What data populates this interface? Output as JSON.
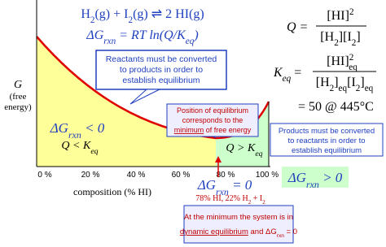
{
  "equation": [
    "H",
    "2",
    "(g) + I",
    "2",
    "(g) ⇌ 2 HI(g)"
  ],
  "delta_g_relation": [
    "ΔG",
    "rxn",
    " = RT ln(Q/K",
    "eq",
    ")"
  ],
  "q_expression": {
    "lhs": "Q =",
    "numerator": [
      "[HI]",
      "2"
    ],
    "denominator": [
      "[H",
      "2",
      "][I",
      "2",
      "]"
    ]
  },
  "keq_expression": {
    "lhs": [
      "K",
      "eq",
      " ="
    ],
    "numerator": [
      "[HI]",
      "2",
      "eq"
    ],
    "denominator": [
      "[H",
      "2",
      "]",
      "eq",
      "[I",
      "2",
      "]",
      "eq"
    ]
  },
  "keq_value": "= 50 @ 445°C",
  "y_axis_label": [
    "G",
    "(free",
    "energy)"
  ],
  "x_axis_label": "composition (% HI)",
  "x_tick_labels": [
    "0 %",
    "20 %",
    "40 %",
    "60 %",
    "80 %",
    "100 %"
  ],
  "reactants_box": [
    "Reactants must be converted",
    "to products in order to",
    "establish equilibrium"
  ],
  "equilibrium_box": [
    "Position of equilibrium",
    "corresponds to the",
    "minimum",
    " of free energy"
  ],
  "products_box": [
    "Products must be converted",
    "to reactants in order to",
    "establish equilibrium"
  ],
  "left_region": {
    "delta_g": [
      "ΔG",
      "rxn",
      " < 0"
    ],
    "q": [
      "Q < K",
      "eq"
    ]
  },
  "right_region": {
    "q": [
      "Q > K",
      "eq"
    ],
    "delta_g": [
      "ΔG",
      "rxn",
      " > 0"
    ]
  },
  "minimum_label": [
    "ΔG",
    "rxn",
    " = 0"
  ],
  "minimum_composition": [
    "78% HI, 22% H",
    "2",
    " + I",
    "2"
  ],
  "bottom_box": [
    "At the minimum the system is in",
    "dynamic equilibrium",
    " and ΔG",
    "rxn",
    " = 0"
  ]
}
